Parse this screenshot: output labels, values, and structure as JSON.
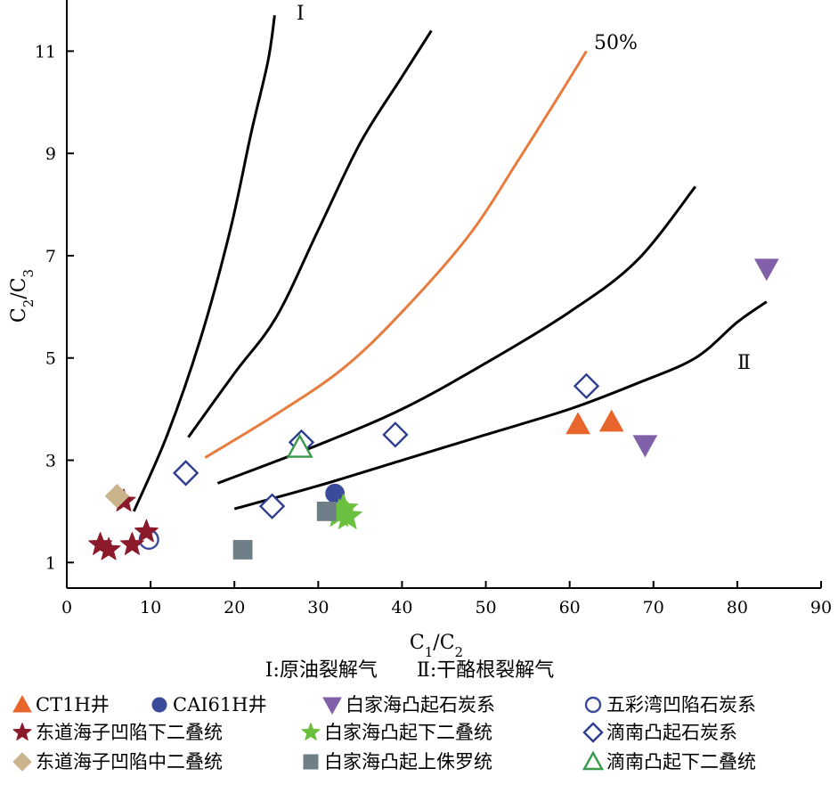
{
  "chart_data": {
    "type": "scatter",
    "xlabel": "C1/C2",
    "ylabel": "C2/C3",
    "xlim": [
      0,
      90
    ],
    "ylim": [
      0.5,
      12
    ],
    "x_ticks": [
      "0",
      "10",
      "20",
      "30",
      "40",
      "50",
      "60",
      "70",
      "80",
      "90"
    ],
    "y_ticks": [
      "1",
      "3",
      "5",
      "7",
      "9",
      "11"
    ],
    "grid": false,
    "legend_position": "bottom",
    "note": "Ⅰ:原油裂解气　　Ⅱ:干酪根裂解气",
    "curves": [
      {
        "label": "Ⅰ",
        "color": "#000000",
        "points": [
          [
            8.0,
            2.0
          ],
          [
            12.0,
            3.5
          ],
          [
            16.0,
            5.4
          ],
          [
            19.5,
            7.5
          ],
          [
            22.0,
            9.4
          ],
          [
            24.0,
            10.8
          ],
          [
            24.8,
            11.7
          ]
        ]
      },
      {
        "label": "",
        "color": "#000000",
        "points": [
          [
            14.5,
            3.45
          ],
          [
            20.0,
            4.7
          ],
          [
            25.0,
            5.8
          ],
          [
            30.0,
            7.5
          ],
          [
            35.0,
            9.2
          ],
          [
            40.0,
            10.5
          ],
          [
            43.5,
            11.4
          ]
        ]
      },
      {
        "label": "50%",
        "color": "#e87b3e",
        "points": [
          [
            16.5,
            3.05
          ],
          [
            25.0,
            3.9
          ],
          [
            33.0,
            4.8
          ],
          [
            40.0,
            5.9
          ],
          [
            48.0,
            7.4
          ],
          [
            54.0,
            8.9
          ],
          [
            59.0,
            10.2
          ],
          [
            62.0,
            11.0
          ]
        ]
      },
      {
        "label": "",
        "color": "#000000",
        "points": [
          [
            18.0,
            2.55
          ],
          [
            30.0,
            3.3
          ],
          [
            40.0,
            4.0
          ],
          [
            50.0,
            4.9
          ],
          [
            60.0,
            5.9
          ],
          [
            68.0,
            6.9
          ],
          [
            75.0,
            8.35
          ]
        ]
      },
      {
        "label": "Ⅱ",
        "color": "#000000",
        "points": [
          [
            20.0,
            2.05
          ],
          [
            30.0,
            2.5
          ],
          [
            40.0,
            3.0
          ],
          [
            50.0,
            3.5
          ],
          [
            60.0,
            4.0
          ],
          [
            68.0,
            4.5
          ],
          [
            75.0,
            5.0
          ],
          [
            80.0,
            5.7
          ],
          [
            83.5,
            6.1
          ]
        ]
      }
    ],
    "series": [
      {
        "name": "CT1H井",
        "marker": "triangle-up",
        "color": "#e8662b",
        "filled": true,
        "points": [
          [
            61.0,
            3.7
          ],
          [
            65.0,
            3.75
          ]
        ]
      },
      {
        "name": "CAI61H井",
        "marker": "circle",
        "color": "#3b4a9a",
        "filled": true,
        "points": [
          [
            32.0,
            2.35
          ]
        ]
      },
      {
        "name": "白家海凸起石炭系",
        "marker": "triangle-down",
        "color": "#8061a9",
        "filled": true,
        "points": [
          [
            83.5,
            6.75
          ],
          [
            69.0,
            3.3
          ]
        ]
      },
      {
        "name": "五彩湾凹陷石炭系",
        "marker": "circle",
        "color": "#3b4a9a",
        "filled": false,
        "points": [
          [
            9.8,
            1.45
          ]
        ]
      },
      {
        "name": "东道海子凹陷下二叠统",
        "marker": "star",
        "color": "#8b1a2b",
        "filled": true,
        "points": [
          [
            4.0,
            1.35
          ],
          [
            5.0,
            1.25
          ],
          [
            7.8,
            1.35
          ],
          [
            9.5,
            1.6
          ],
          [
            6.8,
            2.2
          ]
        ]
      },
      {
        "name": "白家海凸起下二叠统",
        "marker": "star",
        "color": "#6cc040",
        "filled": true,
        "points": [
          [
            33.0,
            2.05
          ],
          [
            32.5,
            1.95
          ],
          [
            33.5,
            1.9
          ]
        ]
      },
      {
        "name": "滴南凸起石炭系",
        "marker": "diamond",
        "color": "#2e3d8f",
        "filled": false,
        "points": [
          [
            14.2,
            2.75
          ],
          [
            24.5,
            2.1
          ],
          [
            28.0,
            3.35
          ],
          [
            39.2,
            3.5
          ],
          [
            62.0,
            4.45
          ]
        ]
      },
      {
        "name": "东道海子凹陷中二叠统",
        "marker": "diamond",
        "color": "#c9b48c",
        "filled": true,
        "points": [
          [
            6.0,
            2.3
          ]
        ]
      },
      {
        "name": "白家海凸起上侏罗统",
        "marker": "square",
        "color": "#6f7f87",
        "filled": true,
        "points": [
          [
            21.0,
            1.25
          ],
          [
            31.0,
            2.0
          ]
        ]
      },
      {
        "name": "滴南凸起下二叠统",
        "marker": "triangle-up",
        "color": "#3a9a4a",
        "filled": false,
        "points": [
          [
            27.8,
            3.25
          ]
        ]
      }
    ]
  }
}
